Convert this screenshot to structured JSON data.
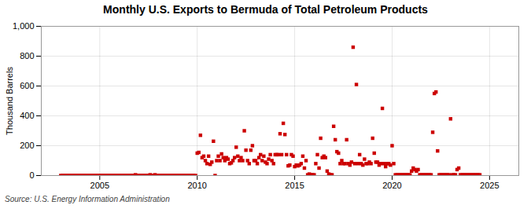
{
  "chart_data": {
    "type": "scatter",
    "title": "Monthly U.S. Exports to Bermuda of Total Petroleum Products",
    "ylabel": "Thousand Barrels",
    "source": "Source: U.S. Energy Information Administration",
    "color": "#cc0000",
    "marker": "square",
    "grid": true,
    "xlim": [
      2002,
      2026.5
    ],
    "xticks": [
      2005,
      2010,
      2015,
      2020,
      2025
    ],
    "ylim": [
      0,
      1000
    ],
    "yticks": [
      0,
      200,
      400,
      600,
      800,
      {
        "value": 1000,
        "label": "1,000"
      }
    ],
    "x": [
      2003,
      2003.083,
      2003.167,
      2003.25,
      2003.333,
      2003.417,
      2003.5,
      2003.583,
      2003.667,
      2003.75,
      2003.833,
      2003.917,
      2004,
      2004.083,
      2004.167,
      2004.25,
      2004.333,
      2004.417,
      2004.5,
      2004.583,
      2004.667,
      2004.75,
      2004.833,
      2004.917,
      2005,
      2005.083,
      2005.167,
      2005.25,
      2005.333,
      2005.417,
      2005.5,
      2005.583,
      2005.667,
      2005.75,
      2005.833,
      2005.917,
      2006,
      2006.083,
      2006.167,
      2006.25,
      2006.333,
      2006.417,
      2006.5,
      2006.583,
      2006.667,
      2006.75,
      2006.833,
      2006.917,
      2007,
      2007.083,
      2007.167,
      2007.25,
      2007.333,
      2007.417,
      2007.5,
      2007.583,
      2007.667,
      2007.75,
      2007.833,
      2007.917,
      2008,
      2008.083,
      2008.167,
      2008.25,
      2008.333,
      2008.417,
      2008.5,
      2008.583,
      2008.667,
      2008.75,
      2008.833,
      2008.917,
      2009,
      2009.083,
      2009.167,
      2009.25,
      2009.333,
      2009.417,
      2009.5,
      2009.583,
      2009.667,
      2009.75,
      2009.833,
      2009.917,
      2010,
      2010.083,
      2010.167,
      2010.25,
      2010.333,
      2010.417,
      2010.5,
      2010.583,
      2010.667,
      2010.75,
      2010.833,
      2010.917,
      2011,
      2011.083,
      2011.167,
      2011.25,
      2011.333,
      2011.417,
      2011.5,
      2011.583,
      2011.667,
      2011.75,
      2011.833,
      2011.917,
      2012,
      2012.083,
      2012.167,
      2012.25,
      2012.333,
      2012.417,
      2012.5,
      2012.583,
      2012.667,
      2012.75,
      2012.833,
      2012.917,
      2013,
      2013.083,
      2013.167,
      2013.25,
      2013.333,
      2013.417,
      2013.5,
      2013.583,
      2013.667,
      2013.75,
      2013.833,
      2013.917,
      2014,
      2014.083,
      2014.167,
      2014.25,
      2014.333,
      2014.417,
      2014.5,
      2014.583,
      2014.667,
      2014.75,
      2014.833,
      2014.917,
      2015,
      2015.083,
      2015.167,
      2015.25,
      2015.333,
      2015.417,
      2015.5,
      2015.583,
      2015.667,
      2015.75,
      2015.833,
      2015.917,
      2016,
      2016.083,
      2016.167,
      2016.25,
      2016.333,
      2016.417,
      2016.5,
      2016.583,
      2016.667,
      2016.75,
      2016.833,
      2016.917,
      2017,
      2017.083,
      2017.167,
      2017.25,
      2017.333,
      2017.417,
      2017.5,
      2017.583,
      2017.667,
      2017.75,
      2017.833,
      2017.917,
      2018,
      2018.083,
      2018.167,
      2018.25,
      2018.333,
      2018.417,
      2018.5,
      2018.583,
      2018.667,
      2018.75,
      2018.833,
      2018.917,
      2019,
      2019.083,
      2019.167,
      2019.25,
      2019.333,
      2019.417,
      2019.5,
      2019.583,
      2019.667,
      2019.75,
      2019.833,
      2019.917,
      2020,
      2020.083,
      2020.167,
      2020.25,
      2020.333,
      2020.417,
      2020.5,
      2020.583,
      2020.667,
      2020.75,
      2020.833,
      2020.917,
      2021,
      2021.083,
      2021.167,
      2021.25,
      2021.333,
      2021.417,
      2021.5,
      2021.583,
      2021.667,
      2021.75,
      2021.833,
      2021.917,
      2022,
      2022.083,
      2022.167,
      2022.25,
      2022.333,
      2022.417,
      2022.5,
      2022.583,
      2022.667,
      2022.75,
      2022.833,
      2022.917,
      2023,
      2023.083,
      2023.167,
      2023.25,
      2023.333,
      2023.417,
      2023.5,
      2023.583,
      2023.667,
      2023.75,
      2023.833,
      2023.917,
      2024,
      2024.083,
      2024.167,
      2024.25,
      2024.333,
      2024.417,
      2024.5
    ],
    "values": [
      0,
      0,
      0,
      0,
      0,
      0,
      0,
      0,
      0,
      0,
      0,
      0,
      0,
      0,
      0,
      0,
      0,
      0,
      0,
      0,
      0,
      0,
      0,
      0,
      0,
      0,
      0,
      0,
      0,
      0,
      0,
      0,
      0,
      0,
      0,
      0,
      0,
      0,
      0,
      0,
      0,
      0,
      0,
      0,
      0,
      0,
      5,
      0,
      0,
      0,
      0,
      0,
      0,
      0,
      0,
      5,
      0,
      0,
      5,
      0,
      0,
      0,
      0,
      0,
      0,
      0,
      0,
      0,
      0,
      0,
      0,
      0,
      0,
      0,
      0,
      0,
      0,
      0,
      0,
      0,
      0,
      0,
      0,
      0,
      150,
      155,
      270,
      120,
      130,
      100,
      80,
      130,
      75,
      90,
      230,
      0,
      100,
      130,
      100,
      145,
      120,
      100,
      120,
      110,
      80,
      85,
      100,
      120,
      190,
      130,
      100,
      120,
      100,
      300,
      170,
      100,
      80,
      170,
      200,
      100,
      100,
      80,
      120,
      140,
      100,
      130,
      90,
      80,
      110,
      140,
      100,
      80,
      140,
      140,
      140,
      280,
      140,
      350,
      275,
      140,
      65,
      70,
      140,
      130,
      60,
      70,
      65,
      70,
      80,
      130,
      50,
      100,
      5,
      10,
      5,
      5,
      5,
      80,
      140,
      50,
      250,
      120,
      130,
      120,
      30,
      10,
      5,
      5,
      330,
      240,
      160,
      150,
      80,
      100,
      80,
      80,
      240,
      80,
      70,
      90,
      860,
      80,
      610,
      80,
      140,
      80,
      70,
      110,
      80,
      80,
      90,
      80,
      250,
      150,
      90,
      90,
      70,
      80,
      450,
      80,
      60,
      80,
      80,
      70,
      200,
      80,
      5,
      5,
      5,
      5,
      5,
      5,
      5,
      5,
      5,
      5,
      30,
      50,
      40,
      30,
      40,
      5,
      5,
      5,
      5,
      5,
      5,
      5,
      5,
      290,
      550,
      560,
      165,
      5,
      5,
      5,
      5,
      5,
      5,
      5,
      380,
      5,
      5,
      5,
      40,
      50,
      5,
      5,
      5,
      5,
      5,
      5,
      5,
      5,
      5,
      5,
      5,
      5,
      5
    ]
  }
}
